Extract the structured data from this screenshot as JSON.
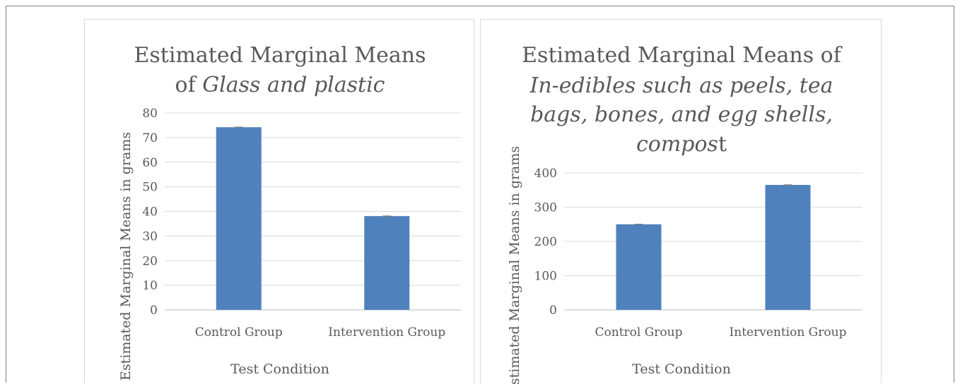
{
  "chart_data": [
    {
      "type": "bar",
      "title": {
        "line1": "Estimated Marginal Means",
        "line2_prefix": "of ",
        "line2_italic": "Glass and plastic"
      },
      "xlabel": "Test Condition",
      "ylabel": "Estimated Marginal Means in grams",
      "categories": [
        "Control Group",
        "Intervention Group"
      ],
      "values": [
        74.2,
        38.1
      ],
      "ylim": [
        0,
        80
      ],
      "yticks": [
        0,
        10,
        20,
        30,
        40,
        50,
        60,
        70,
        80
      ],
      "error_bars": true,
      "grid": true,
      "bar_color": "#4f81bd"
    },
    {
      "type": "bar",
      "title": {
        "line1": "Estimated Marginal Means of",
        "line2_italic": "In-edibles such as peels, tea",
        "line3_italic": "bags, bones, and egg shells,",
        "line4_italic": "compos",
        "line4_suffix": "t"
      },
      "xlabel": "Test Condition",
      "ylabel": "Estimated Marginal Means in grams",
      "categories": [
        "Control Group",
        "Intervention Group"
      ],
      "values": [
        250,
        365
      ],
      "ylim": [
        0,
        400
      ],
      "yticks": [
        0,
        100,
        200,
        300,
        400
      ],
      "error_bars": true,
      "grid": true,
      "bar_color": "#4f81bd"
    }
  ]
}
